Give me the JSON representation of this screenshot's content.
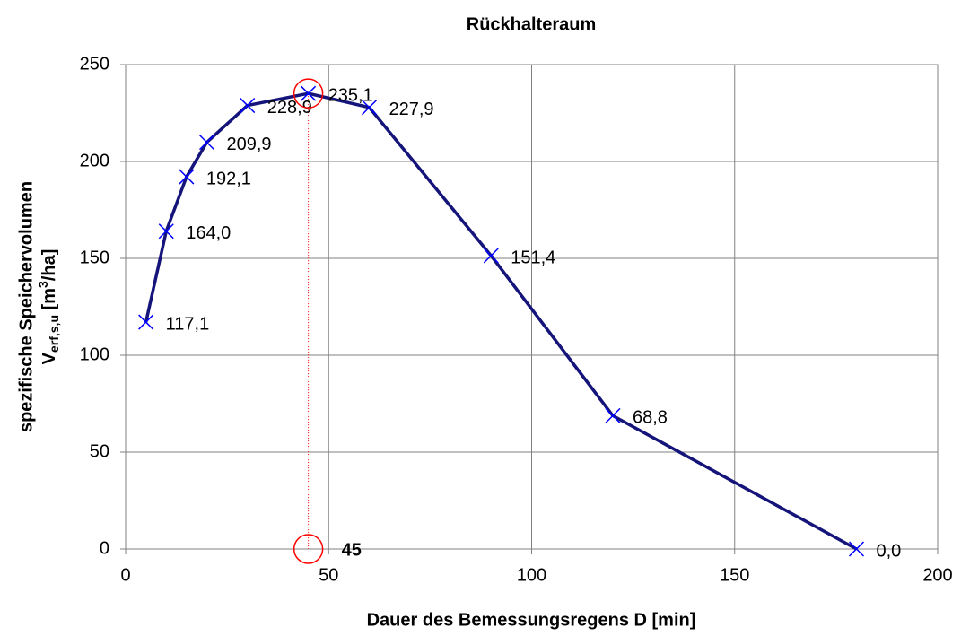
{
  "chart_data": {
    "type": "line",
    "title": "Rückhalteraum",
    "x_label": "Dauer des Bemessungsregens D [min]",
    "y_label": {
      "line1": "spezifische Speichervolumen",
      "v": "V",
      "sub": "erf,s,u",
      "unit_a": " [m",
      "sup": "3",
      "unit_b": "/ha]"
    },
    "x": [
      5,
      10,
      15,
      20,
      30,
      45,
      60,
      90,
      120,
      180
    ],
    "values": [
      117.1,
      164.0,
      192.1,
      209.9,
      228.9,
      235.1,
      227.9,
      151.4,
      68.8,
      0.0
    ],
    "value_labels": [
      "117,1",
      "164,0",
      "192,1",
      "209,9",
      "228,9",
      "235,1",
      "227,9",
      "151,4",
      "68,8",
      "0,0"
    ],
    "line_color": "#14147a",
    "marker_color": "#0000ff",
    "xlim": [
      0,
      200
    ],
    "xticks": [
      0,
      50,
      100,
      150,
      200
    ],
    "ylim": [
      0,
      250
    ],
    "yticks": [
      0,
      50,
      100,
      150,
      200,
      250
    ],
    "grid": true,
    "marker_x": 45,
    "marker_color_highlight": "#ff0000"
  }
}
